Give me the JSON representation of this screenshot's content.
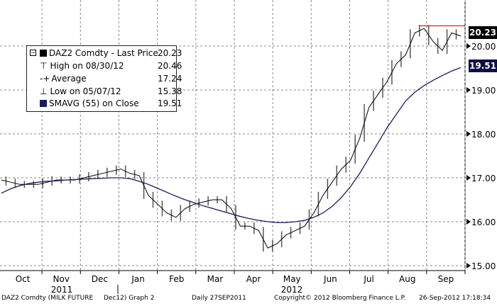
{
  "chart_data": {
    "type": "line",
    "title": "DAZ2 Comdty (MILK FUTURE Dec12) Graph 2",
    "ylim": [
      14.9,
      20.9
    ],
    "yticks": [
      "15.00",
      "16.00",
      "17.00",
      "18.00",
      "19.00",
      "20.00"
    ],
    "months": [
      "Oct",
      "Nov",
      "Dec",
      "Jan",
      "Feb",
      "Mar",
      "Apr",
      "May",
      "Jun",
      "Jul",
      "Aug",
      "Sep"
    ],
    "years": [
      "2011",
      "2012"
    ],
    "series": [
      {
        "name": "DAZ2 Comdty - Last Price",
        "color": "#000000",
        "values": [
          16.95,
          16.9,
          16.85,
          16.85,
          16.85,
          16.9,
          16.95,
          16.95,
          16.95,
          17.0,
          17.05,
          17.1,
          17.15,
          17.2,
          17.1,
          17.05,
          16.6,
          16.4,
          16.2,
          16.1,
          16.3,
          16.4,
          16.45,
          16.5,
          16.5,
          16.3,
          15.9,
          15.9,
          15.8,
          15.4,
          15.5,
          15.7,
          15.8,
          15.9,
          16.2,
          16.6,
          16.9,
          17.2,
          17.4,
          17.9,
          18.6,
          18.9,
          19.2,
          19.6,
          19.8,
          20.3,
          20.4,
          20.1,
          19.9,
          20.3,
          20.23
        ]
      },
      {
        "name": "SMAVG (55) on Close",
        "color": "#1a1a5e",
        "values": [
          16.65,
          16.75,
          16.82,
          16.87,
          16.9,
          16.92,
          16.93,
          16.95,
          16.96,
          16.97,
          16.98,
          16.99,
          17.0,
          17.0,
          16.98,
          16.92,
          16.85,
          16.76,
          16.67,
          16.58,
          16.5,
          16.43,
          16.36,
          16.3,
          16.24,
          16.18,
          16.12,
          16.07,
          16.03,
          16.0,
          15.98,
          15.98,
          16.0,
          16.03,
          16.1,
          16.2,
          16.35,
          16.55,
          16.8,
          17.1,
          17.45,
          17.8,
          18.15,
          18.45,
          18.75,
          18.95,
          19.1,
          19.22,
          19.33,
          19.43,
          19.51
        ]
      }
    ],
    "high_line": 20.46
  },
  "legend": {
    "items": [
      {
        "label": "DAZ2 Comdty - Last Price",
        "value": "20.23"
      },
      {
        "label": "High on 08/30/12",
        "value": "20.46"
      },
      {
        "label": "Average",
        "value": "17.24"
      },
      {
        "label": "Low on 05/07/12",
        "value": "15.38"
      },
      {
        "label": "SMAVG (55) on Close",
        "value": "19.51"
      }
    ]
  },
  "badges": {
    "last": "20.23",
    "sma": "19.51"
  },
  "footer": {
    "ticker": "DAZ2 Comdty (MILK FUTURE",
    "contract": "Dec12) Graph 2",
    "period": "Daily 27SEP2011",
    "copyright": "Copyright© 2012 Bloomberg Finance L.P.",
    "timestamp": "26-Sep-2012 17:18:34"
  }
}
